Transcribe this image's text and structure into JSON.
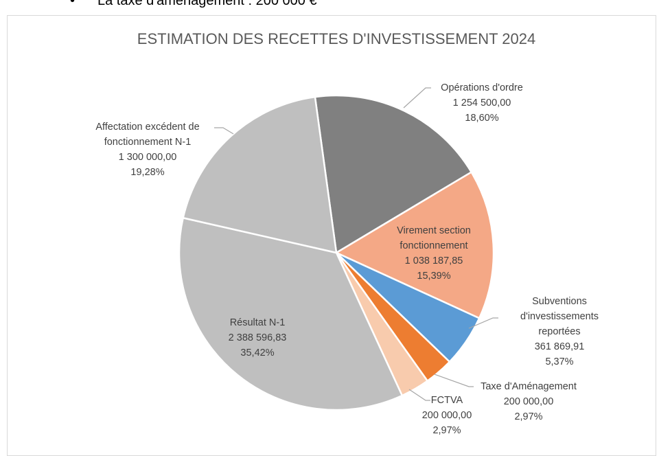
{
  "document_text": "La taxe d'aménagement : 200 000 €",
  "chart_data": {
    "type": "pie",
    "title": "ESTIMATION DES RECETTES D'INVESTISSEMENT 2024",
    "categories": [
      "Opérations d'ordre",
      "Virement section fonctionnement",
      "Subventions d'investissements reportées",
      "Taxe d'Aménagement",
      "FCTVA",
      "Résultat N-1",
      "Affectation excédent de fonctionnement N-1"
    ],
    "values": [
      1254500,
      1038187.85,
      361869.91,
      200000,
      200000,
      2388596.83,
      1300000
    ],
    "value_labels": [
      "1 254 500,00",
      "1 038 187,85",
      "361 869,91",
      "200 000,00",
      "200 000,00",
      "2 388 596,83",
      "1 300 000,00"
    ],
    "percent_labels": [
      "18,60%",
      "15,39%",
      "5,37%",
      "2,97%",
      "2,97%",
      "35,42%",
      "19,28%"
    ],
    "colors": [
      "#808080",
      "#f4a886",
      "#5b9bd5",
      "#ed7d31",
      "#f8cbad",
      "#bfbfbf",
      "#bfbfbf"
    ]
  }
}
